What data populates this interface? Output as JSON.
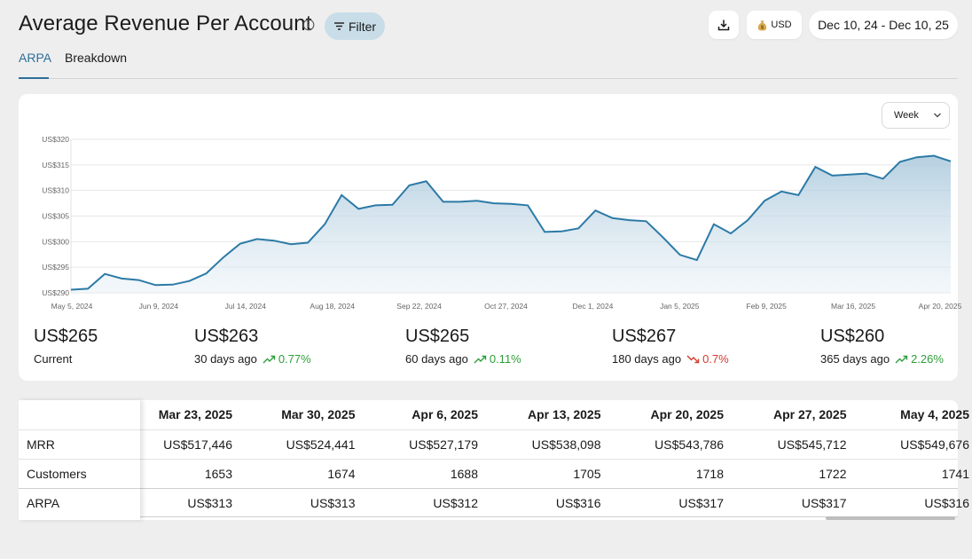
{
  "header": {
    "title": "Average Revenue Per Account",
    "filter_label": "Filter",
    "currency_label": "USD",
    "date_range": "Dec 10, 24 - Dec 10, 25"
  },
  "tabs": [
    {
      "label": "ARPA",
      "active": true
    },
    {
      "label": "Breakdown",
      "active": false
    }
  ],
  "chart_controls": {
    "period": "Week"
  },
  "chart_data": {
    "type": "area",
    "y_tick_labels": [
      "US$290",
      "US$295",
      "US$300",
      "US$305",
      "US$310",
      "US$315",
      "US$320"
    ],
    "ylim": [
      290,
      320
    ],
    "x_tick_labels": [
      "May 5, 2024",
      "Jun 9, 2024",
      "Jul 14, 2024",
      "Aug 18, 2024",
      "Sep 22, 2024",
      "Oct 27, 2024",
      "Dec 1, 2024",
      "Jan 5, 2025",
      "Feb 9, 2025",
      "Mar 16, 2025",
      "Apr 20, 2025"
    ],
    "values": [
      290.6,
      290.8,
      293.7,
      292.8,
      292.5,
      291.5,
      291.6,
      292.3,
      293.8,
      296.9,
      299.6,
      300.5,
      300.2,
      299.5,
      299.8,
      303.4,
      309.1,
      306.4,
      307.1,
      307.2,
      311.0,
      311.8,
      307.8,
      307.8,
      308.0,
      307.5,
      307.4,
      307.1,
      301.9,
      302.0,
      302.6,
      306.1,
      304.6,
      304.2,
      304.0,
      300.8,
      297.4,
      296.4,
      303.4,
      301.6,
      304.2,
      308.0,
      309.8,
      309.1,
      314.6,
      312.9,
      313.1,
      313.3,
      312.3,
      315.6,
      316.5,
      316.8,
      315.7
    ],
    "grid": true,
    "color": "#2c7aa6"
  },
  "stats": [
    {
      "value": "US$265",
      "label": "Current"
    },
    {
      "value": "US$263",
      "label": "30 days ago",
      "delta": "0.77%",
      "direction": "up"
    },
    {
      "value": "US$265",
      "label": "60 days ago",
      "delta": "0.11%",
      "direction": "up"
    },
    {
      "value": "US$267",
      "label": "180 days ago",
      "delta": "0.7%",
      "direction": "down"
    },
    {
      "value": "US$260",
      "label": "365 days ago",
      "delta": "2.26%",
      "direction": "up"
    }
  ],
  "table": {
    "row_labels": [
      "MRR",
      "Customers",
      "ARPA"
    ],
    "columns": [
      {
        "header": "Mar 23, 2025",
        "mrr": "US$517,446",
        "customers": "1653",
        "arpa": "US$313"
      },
      {
        "header": "Mar 30, 2025",
        "mrr": "US$524,441",
        "customers": "1674",
        "arpa": "US$313"
      },
      {
        "header": "Apr 6, 2025",
        "mrr": "US$527,179",
        "customers": "1688",
        "arpa": "US$312"
      },
      {
        "header": "Apr 13, 2025",
        "mrr": "US$538,098",
        "customers": "1705",
        "arpa": "US$316"
      },
      {
        "header": "Apr 20, 2025",
        "mrr": "US$543,786",
        "customers": "1718",
        "arpa": "US$317"
      },
      {
        "header": "Apr 27, 2025",
        "mrr": "US$545,712",
        "customers": "1722",
        "arpa": "US$317"
      },
      {
        "header": "May 4, 2025",
        "mrr": "US$549,676",
        "customers": "1741",
        "arpa": "US$316"
      }
    ]
  }
}
